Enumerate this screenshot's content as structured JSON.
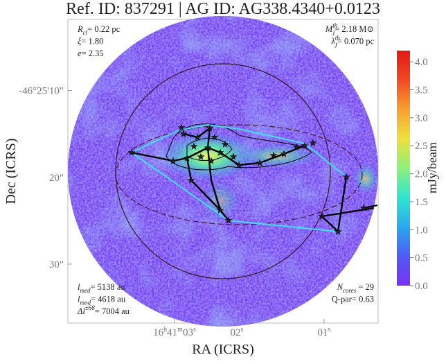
{
  "chart_data": {
    "type": "image",
    "title": "Ref. ID: 837291 | AG ID: AG338.4340+0.0123",
    "xlabel": "RA (ICRS)",
    "ylabel": "Dec (ICRS)",
    "xticks": [
      [
        "16",
        "h",
        "41",
        "m",
        "03",
        "s"
      ],
      [
        "02",
        "s"
      ],
      [
        "01",
        "s"
      ]
    ],
    "ylim": [
      1.8,
      36.8
    ],
    "yticks": [
      {
        "value": 10,
        "label": "-46°25'10\""
      },
      {
        "value": 20,
        "label": "20\""
      },
      {
        "value": 30,
        "label": "30\""
      }
    ],
    "colorbar": {
      "label": "mJy/beam",
      "lim": [
        0,
        4.2
      ],
      "colors": [
        "#7b2ff7",
        "#4f5bf5",
        "#2aa8f0",
        "#2ee6d0",
        "#8df07a",
        "#f0e040",
        "#f7a030",
        "#f24a22",
        "#e01818"
      ],
      "ticks": [
        {
          "value": 0,
          "label": "0.0"
        },
        0.5,
        {
          "value": 1,
          "label": "1.0"
        },
        1.5,
        {
          "value": 2,
          "label": "2.0"
        },
        2.5,
        {
          "value": 3,
          "label": "3.0"
        },
        3.5,
        {
          "value": 4,
          "label": "4.0"
        }
      ]
    },
    "annotations": {
      "top_left": [
        [
          "R",
          "cl",
          "",
          "= 0.22 pc"
        ],
        [
          "ξ",
          "",
          "",
          "= 1.80"
        ],
        [
          "e",
          "",
          "",
          "= 2.35"
        ]
      ],
      "top_right": [
        [
          "M",
          "J",
          "th",
          "= 2.18 M⊙"
        ],
        [
          "λ",
          "J",
          "th",
          "= 0.070 pc"
        ]
      ],
      "bottom_left": [
        [
          "l",
          "med",
          "",
          "= 5138 au"
        ],
        [
          "l",
          "mod",
          "",
          "= 4618 au"
        ],
        [
          "Δl",
          "",
          "±68",
          "= 7004 au"
        ]
      ],
      "bottom_right": [
        [
          "N",
          "cores",
          "",
          " = 29"
        ],
        [
          "Q-par",
          "",
          "",
          "= 0.63"
        ]
      ]
    }
  }
}
